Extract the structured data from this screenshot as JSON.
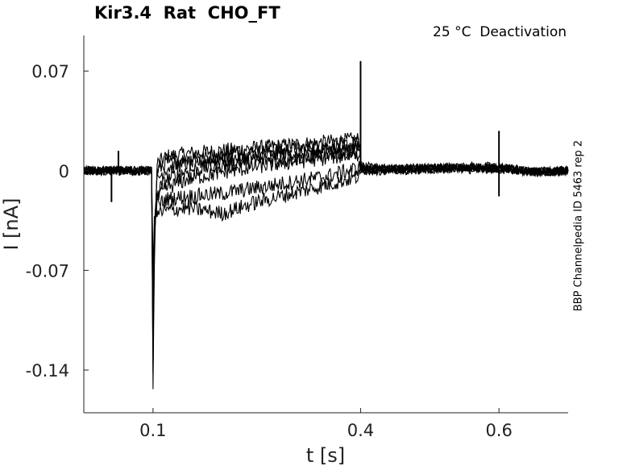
{
  "chart_data": {
    "type": "line",
    "title": "Kir3.4  Rat  CHO_FT",
    "annotation": "25 °C  Deactivation",
    "side_label": "BBP Channelpedia ID 5463 rep 2",
    "xlabel": "t [s]",
    "ylabel": "I [nA]",
    "xlim": [
      0.0,
      0.7
    ],
    "ylim": [
      -0.17,
      0.095
    ],
    "xticks": [
      0.1,
      0.4,
      0.6
    ],
    "xtick_labels": [
      "0.1",
      "0.4",
      "0.6"
    ],
    "yticks": [
      0.07,
      0,
      -0.07,
      -0.14
    ],
    "ytick_labels": [
      "0.07",
      "0",
      "-0.07",
      "-0.14"
    ],
    "grid": false,
    "line_color": "#000000",
    "series": [
      {
        "x": [
          0.0,
          0.05,
          0.098,
          0.1,
          0.102,
          0.106,
          0.12,
          0.15,
          0.2,
          0.25,
          0.3,
          0.35,
          0.398,
          0.402,
          0.45,
          0.5,
          0.55,
          0.6,
          0.65,
          0.7
        ],
        "y": [
          0.0,
          0.0,
          0.0,
          -0.156,
          -0.06,
          0.005,
          0.01,
          0.012,
          0.014,
          0.016,
          0.018,
          0.02,
          0.022,
          0.003,
          0.002,
          0.002,
          0.002,
          0.002,
          -0.001,
          0.0
        ]
      },
      {
        "x": [
          0.0,
          0.05,
          0.098,
          0.1,
          0.102,
          0.106,
          0.12,
          0.15,
          0.2,
          0.25,
          0.3,
          0.35,
          0.398,
          0.402,
          0.45,
          0.5,
          0.55,
          0.6,
          0.65,
          0.7
        ],
        "y": [
          0.0,
          0.0,
          0.0,
          -0.14,
          -0.05,
          0.0,
          0.006,
          0.008,
          0.011,
          0.013,
          0.015,
          0.017,
          0.019,
          0.002,
          0.002,
          0.002,
          0.003,
          0.003,
          -0.001,
          0.0
        ]
      },
      {
        "x": [
          0.0,
          0.05,
          0.098,
          0.1,
          0.102,
          0.106,
          0.12,
          0.15,
          0.2,
          0.25,
          0.3,
          0.35,
          0.398,
          0.402,
          0.45,
          0.5,
          0.55,
          0.6,
          0.65,
          0.7
        ],
        "y": [
          0.0,
          0.0,
          0.0,
          -0.12,
          -0.045,
          -0.006,
          0.002,
          0.005,
          0.008,
          0.01,
          0.012,
          0.014,
          0.016,
          0.001,
          0.001,
          0.002,
          0.002,
          0.002,
          -0.001,
          0.0
        ]
      },
      {
        "x": [
          0.0,
          0.05,
          0.098,
          0.1,
          0.102,
          0.106,
          0.12,
          0.15,
          0.2,
          0.25,
          0.3,
          0.35,
          0.398,
          0.402,
          0.45,
          0.5,
          0.55,
          0.6,
          0.65,
          0.7
        ],
        "y": [
          0.0,
          0.0,
          0.0,
          -0.1,
          -0.04,
          -0.015,
          -0.006,
          0.0,
          0.004,
          0.007,
          0.009,
          0.012,
          0.014,
          0.001,
          0.001,
          0.001,
          0.002,
          0.002,
          -0.001,
          0.0
        ]
      },
      {
        "x": [
          0.0,
          0.05,
          0.098,
          0.1,
          0.102,
          0.106,
          0.12,
          0.15,
          0.2,
          0.25,
          0.3,
          0.35,
          0.398,
          0.402,
          0.45,
          0.5,
          0.55,
          0.6,
          0.65,
          0.7
        ],
        "y": [
          0.0,
          0.0,
          0.0,
          -0.09,
          -0.04,
          -0.02,
          -0.012,
          -0.006,
          -0.001,
          0.003,
          0.006,
          0.009,
          0.012,
          0.001,
          0.001,
          0.001,
          0.002,
          0.002,
          -0.001,
          0.0
        ]
      },
      {
        "x": [
          0.0,
          0.05,
          0.098,
          0.1,
          0.102,
          0.106,
          0.12,
          0.15,
          0.2,
          0.25,
          0.3,
          0.35,
          0.398,
          0.402,
          0.45,
          0.5,
          0.55,
          0.6,
          0.65,
          0.7
        ],
        "y": [
          0.0,
          0.0,
          0.0,
          -0.08,
          -0.035,
          -0.024,
          -0.02,
          -0.018,
          -0.016,
          -0.012,
          -0.008,
          -0.004,
          0.002,
          0.0,
          0.001,
          0.001,
          0.002,
          0.002,
          -0.001,
          0.0
        ]
      },
      {
        "x": [
          0.0,
          0.05,
          0.098,
          0.1,
          0.102,
          0.106,
          0.12,
          0.15,
          0.2,
          0.25,
          0.3,
          0.35,
          0.398,
          0.402,
          0.45,
          0.5,
          0.55,
          0.6,
          0.65,
          0.7
        ],
        "y": [
          0.0,
          0.0,
          0.0,
          -0.07,
          -0.035,
          -0.03,
          -0.028,
          -0.026,
          -0.03,
          -0.022,
          -0.016,
          -0.01,
          -0.004,
          0.0,
          0.0,
          0.001,
          0.001,
          0.001,
          -0.001,
          0.0
        ]
      }
    ],
    "artifacts": [
      {
        "x": 0.05,
        "y": 0.014
      },
      {
        "x": 0.04,
        "y": -0.022
      },
      {
        "x": 0.4,
        "y": 0.077
      },
      {
        "x": 0.6,
        "y": 0.028
      },
      {
        "x": 0.6,
        "y": -0.018
      }
    ]
  }
}
